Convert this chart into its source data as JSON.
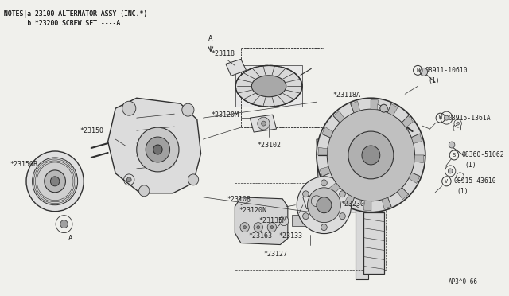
{
  "bg_color": "#f0f0ec",
  "line_color": "#303030",
  "text_color": "#202020",
  "notes_line1": "NOTES|a.23100 ALTERNATOR ASSY (INC.*)",
  "notes_line2": "      b.*23200 SCREW SET ----A",
  "diagram_ref": "AP3^0.66",
  "figsize": [
    6.4,
    3.72
  ],
  "dpi": 100
}
